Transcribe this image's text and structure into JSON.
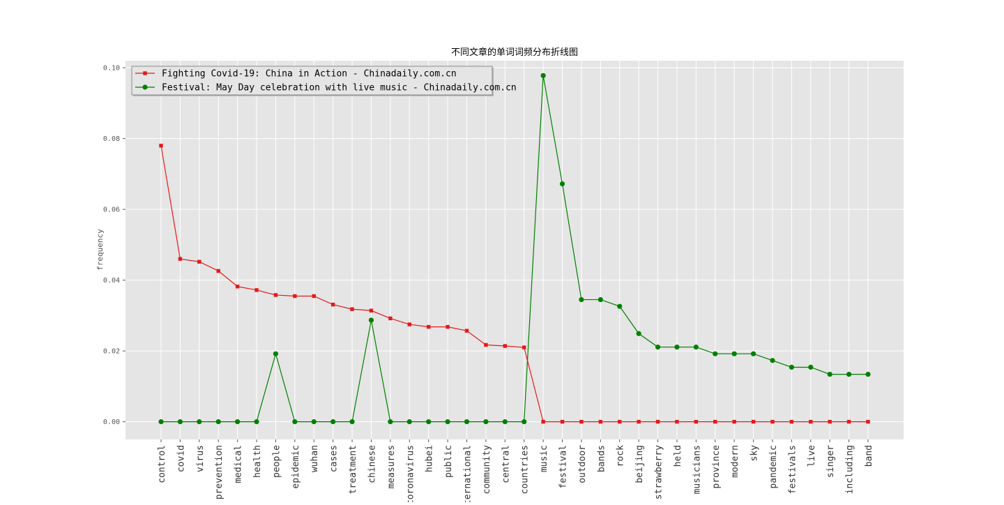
{
  "chart_data": {
    "type": "line",
    "title": "不同文章的单词词频分布折线图",
    "xlabel": "",
    "ylabel": "frequency",
    "ylim": [
      -0.005,
      0.102
    ],
    "yticks": [
      0.0,
      0.02,
      0.04,
      0.06,
      0.08,
      0.1
    ],
    "ytick_labels": [
      "0.00",
      "0.02",
      "0.04",
      "0.06",
      "0.08",
      "0.10"
    ],
    "grid": true,
    "legend_position": "top-left",
    "categories": [
      "control",
      "covid",
      "virus",
      "prevention",
      "medical",
      "health",
      "people",
      "epidemic",
      "wuhan",
      "cases",
      "treatment",
      "chinese",
      "measures",
      "coronavirus",
      "hubei",
      "public",
      "international",
      "community",
      "central",
      "countries",
      "music",
      "festival",
      "outdoor",
      "bands",
      "rock",
      "beijing",
      "strawberry",
      "held",
      "musicians",
      "province",
      "modern",
      "sky",
      "pandemic",
      "festivals",
      "live",
      "singer",
      "including",
      "band"
    ],
    "series": [
      {
        "name": "Fighting Covid-19: China in Action - Chinadaily.com.cn",
        "color": "#e41a1c",
        "marker": "square",
        "values": [
          0.078,
          0.046,
          0.0452,
          0.0426,
          0.0382,
          0.0372,
          0.0358,
          0.0355,
          0.0355,
          0.0331,
          0.0318,
          0.0314,
          0.0292,
          0.0275,
          0.0268,
          0.0268,
          0.0257,
          0.0217,
          0.0214,
          0.021,
          0,
          0,
          0,
          0,
          0,
          0,
          0,
          0,
          0,
          0,
          0,
          0,
          0,
          0,
          0,
          0,
          0,
          0
        ]
      },
      {
        "name": "Festival: May Day celebration with live music - Chinadaily.com.cn",
        "color": "#008000",
        "marker": "circle",
        "values": [
          0,
          0,
          0,
          0,
          0,
          0,
          0.0192,
          0,
          0,
          0,
          0,
          0.0287,
          0,
          0,
          0,
          0,
          0,
          0,
          0,
          0,
          0.0978,
          0.0672,
          0.0345,
          0.0345,
          0.0326,
          0.0249,
          0.0211,
          0.0211,
          0.0211,
          0.0192,
          0.0192,
          0.0192,
          0.0173,
          0.0154,
          0.0154,
          0.0134,
          0.0134,
          0.0134
        ]
      }
    ]
  },
  "colors": {
    "plot_background": "#e5e5e5",
    "grid": "#ffffff"
  }
}
